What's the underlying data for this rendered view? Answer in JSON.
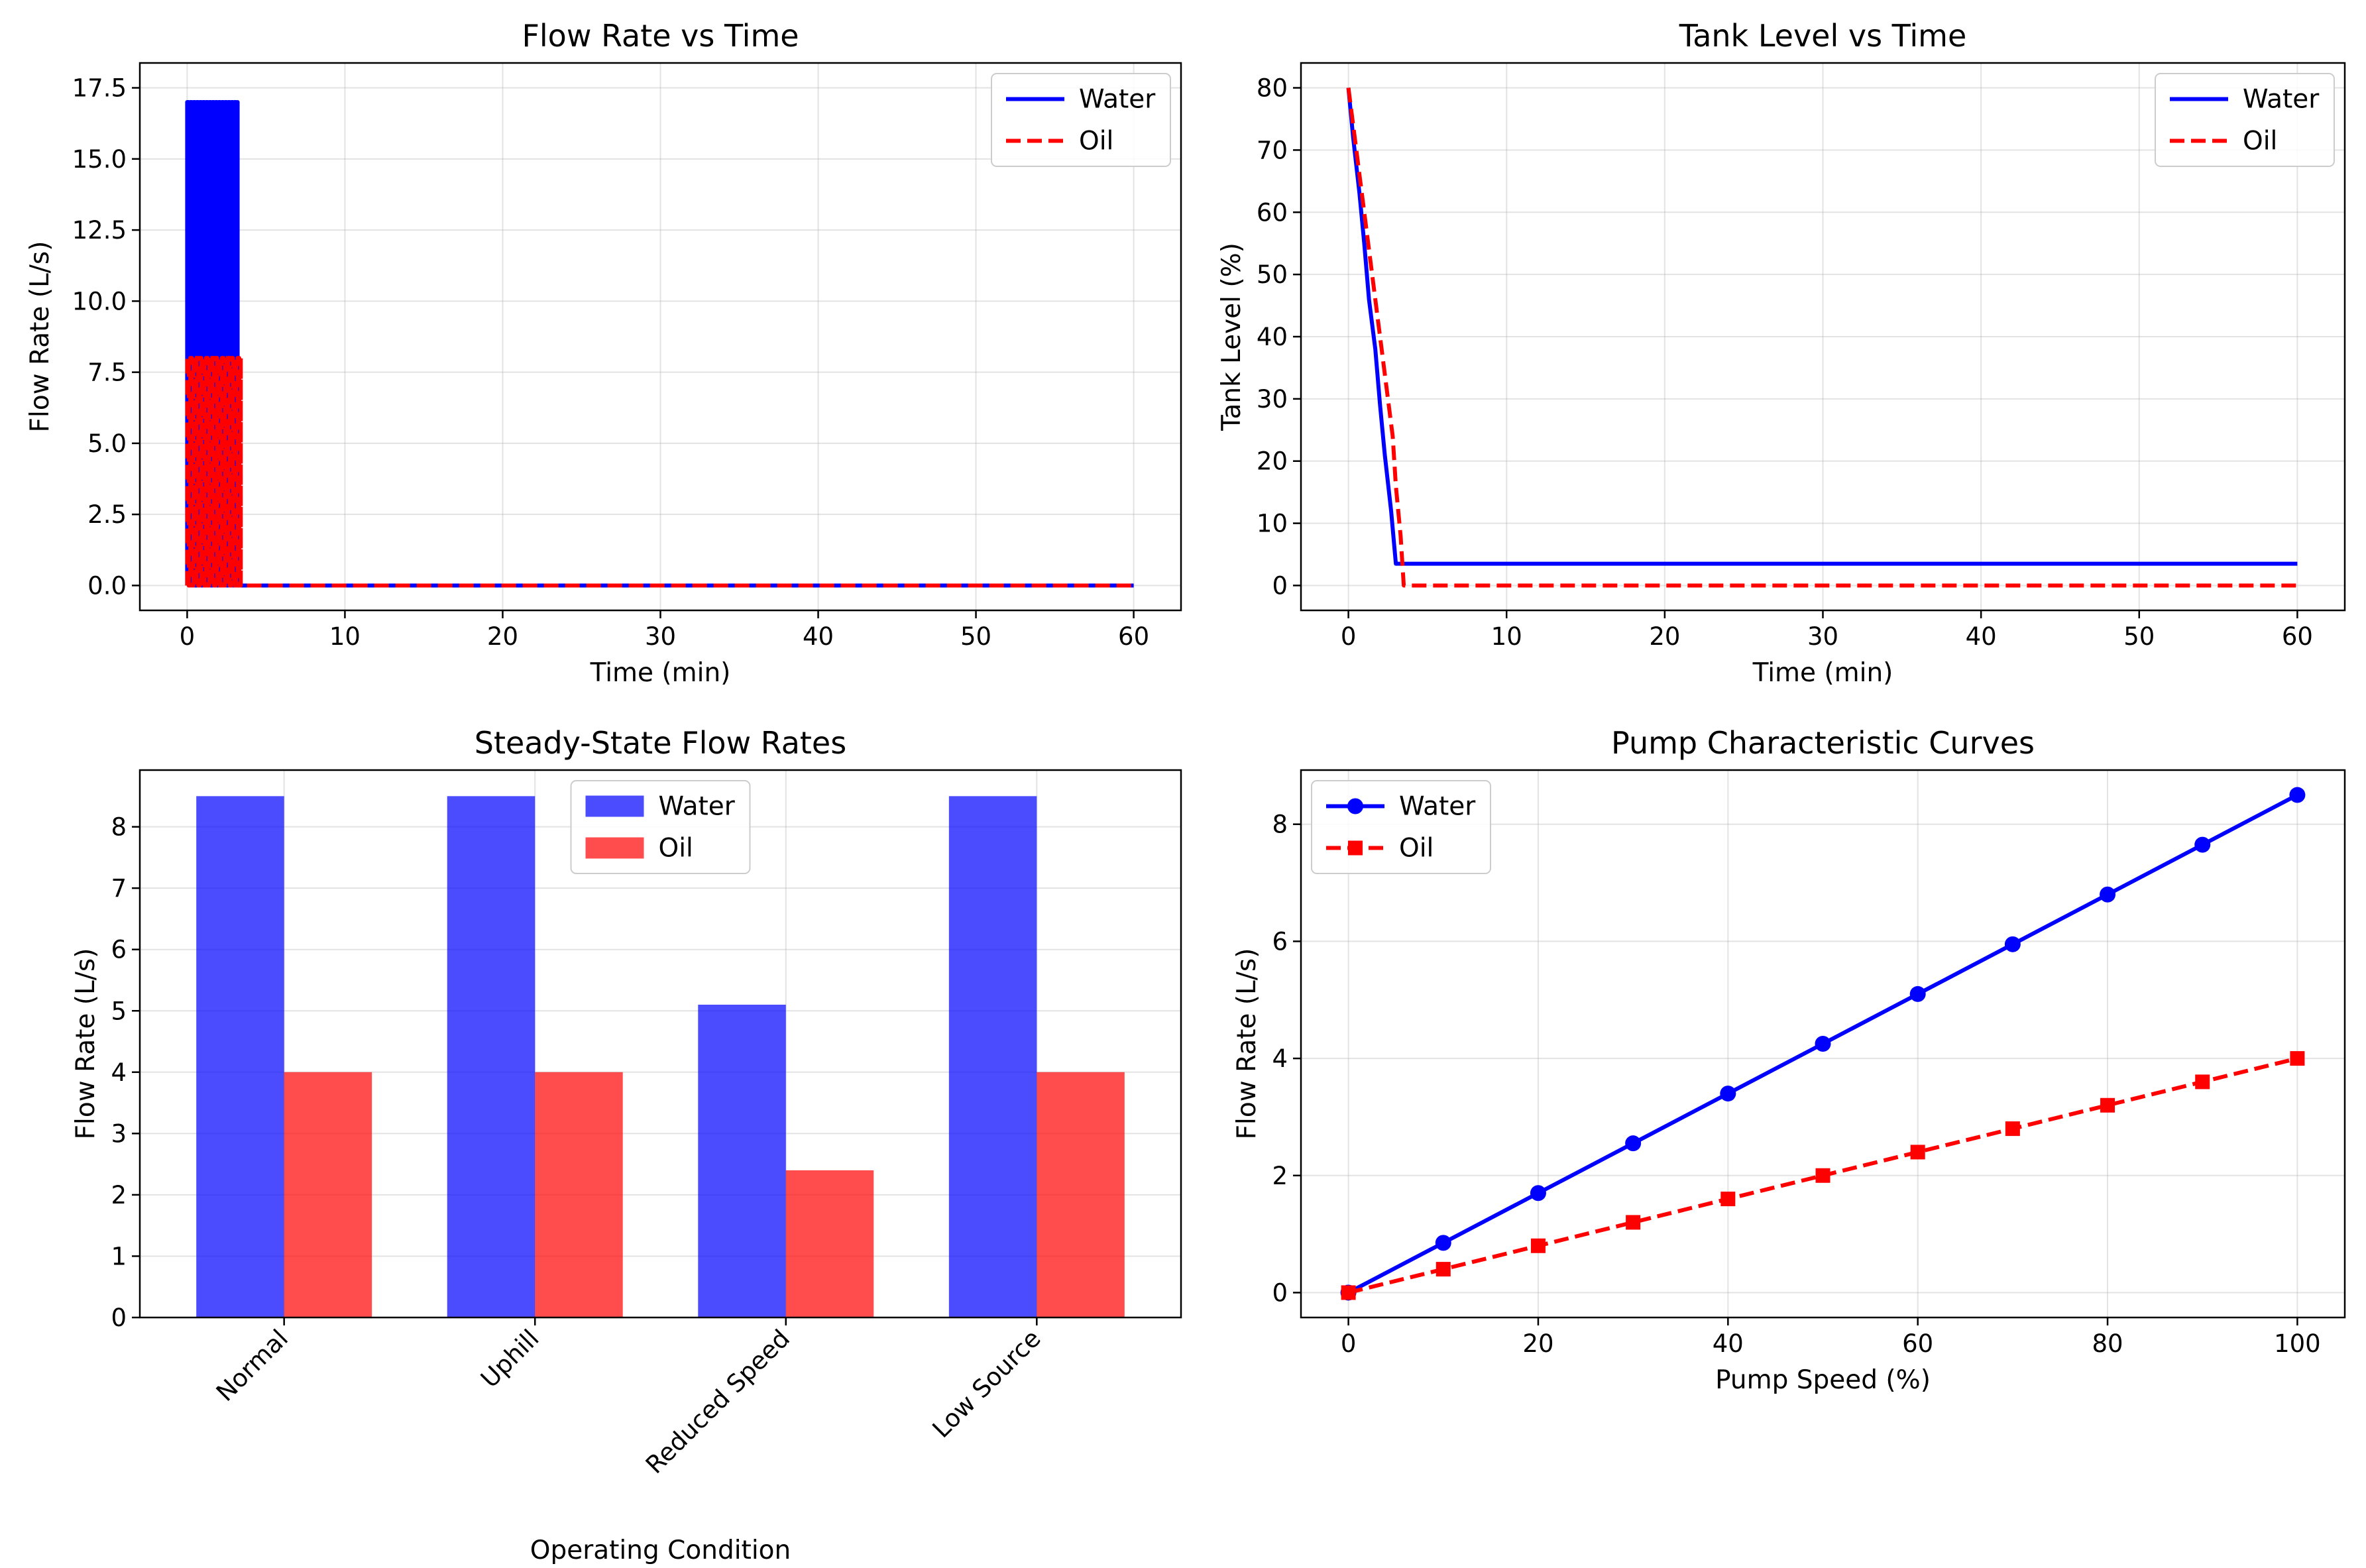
{
  "colors": {
    "water": "#0000ff",
    "oil": "#ff0000",
    "grid": "#b0b0b0",
    "axes": "#000000"
  },
  "chart_data": [
    {
      "id": "flow",
      "type": "line",
      "title": "Flow Rate vs Time",
      "xlabel": "Time (min)",
      "ylabel": "Flow Rate (L/s)",
      "xlim": [
        -3,
        63
      ],
      "ylim": [
        -0.875,
        18.375
      ],
      "xticks": [
        0,
        10,
        20,
        30,
        40,
        50,
        60
      ],
      "yticks": [
        0.0,
        2.5,
        5.0,
        7.5,
        10.0,
        12.5,
        15.0,
        17.5
      ],
      "ytick_labels": [
        "0.0",
        "2.5",
        "5.0",
        "7.5",
        "10.0",
        "12.5",
        "15.0",
        "17.5"
      ],
      "grid": true,
      "legend": "upper-right",
      "series": [
        {
          "name": "Water",
          "style": "solid",
          "color": "water",
          "oscillation": {
            "from": 0,
            "to": 3.2,
            "low": 0,
            "high": 17,
            "step": 0.1
          },
          "points": [
            [
              3.2,
              0
            ],
            [
              60,
              0
            ]
          ]
        },
        {
          "name": "Oil",
          "style": "dashed",
          "color": "oil",
          "oscillation": {
            "from": 0,
            "to": 3.4,
            "low": 0,
            "high": 8,
            "step": 0.1
          },
          "points": [
            [
              3.4,
              0
            ],
            [
              60,
              0
            ]
          ]
        }
      ]
    },
    {
      "id": "tank",
      "type": "line",
      "title": "Tank Level vs Time",
      "xlabel": "Time (min)",
      "ylabel": "Tank Level (%)",
      "xlim": [
        -3,
        63
      ],
      "ylim": [
        -4,
        84
      ],
      "xticks": [
        0,
        10,
        20,
        30,
        40,
        50,
        60
      ],
      "yticks": [
        0,
        10,
        20,
        30,
        40,
        50,
        60,
        70,
        80
      ],
      "grid": true,
      "legend": "upper-right",
      "series": [
        {
          "name": "Water",
          "style": "solid",
          "color": "water",
          "points": [
            [
              0,
              80
            ],
            [
              0.3,
              72
            ],
            [
              0.7,
              63
            ],
            [
              1.0,
              55
            ],
            [
              1.3,
              46
            ],
            [
              1.7,
              38
            ],
            [
              2.0,
              29
            ],
            [
              2.3,
              21
            ],
            [
              2.7,
              12
            ],
            [
              3.0,
              3.5
            ],
            [
              60,
              3.5
            ]
          ]
        },
        {
          "name": "Oil",
          "style": "dashed",
          "color": "oil",
          "points": [
            [
              0,
              80
            ],
            [
              0.4,
              72
            ],
            [
              0.8,
              64
            ],
            [
              1.2,
              56
            ],
            [
              1.6,
              48
            ],
            [
              2.0,
              40
            ],
            [
              2.4,
              32
            ],
            [
              2.8,
              24
            ],
            [
              3.0,
              16
            ],
            [
              3.3,
              8
            ],
            [
              3.5,
              0
            ],
            [
              60,
              0
            ]
          ]
        }
      ]
    },
    {
      "id": "bars",
      "type": "bar",
      "title": "Steady-State Flow Rates",
      "xlabel": "Operating Condition",
      "ylabel": "Flow Rate (L/s)",
      "categories": [
        "Normal",
        "Uphill",
        "Reduced Speed",
        "Low Source"
      ],
      "ylim": [
        0,
        8.925
      ],
      "yticks": [
        0,
        1,
        2,
        3,
        4,
        5,
        6,
        7,
        8
      ],
      "grid": true,
      "legend": "upper-center",
      "bar_alpha": 0.7,
      "series": [
        {
          "name": "Water",
          "color": "water",
          "values": [
            8.5,
            8.5,
            5.1,
            8.5
          ]
        },
        {
          "name": "Oil",
          "color": "oil",
          "values": [
            4.0,
            4.0,
            2.4,
            4.0
          ]
        }
      ]
    },
    {
      "id": "pump",
      "type": "line",
      "title": "Pump Characteristic Curves",
      "xlabel": "Pump Speed (%)",
      "ylabel": "Flow Rate (L/s)",
      "xlim": [
        -5,
        105
      ],
      "ylim": [
        -0.425,
        8.925
      ],
      "xticks": [
        0,
        20,
        40,
        60,
        80,
        100
      ],
      "yticks": [
        0,
        2,
        4,
        6,
        8
      ],
      "grid": true,
      "legend": "upper-left",
      "series": [
        {
          "name": "Water",
          "style": "solid",
          "marker": "circle",
          "color": "water",
          "points": [
            [
              0,
              0
            ],
            [
              10,
              0.85
            ],
            [
              20,
              1.7
            ],
            [
              30,
              2.55
            ],
            [
              40,
              3.4
            ],
            [
              50,
              4.25
            ],
            [
              60,
              5.1
            ],
            [
              70,
              5.95
            ],
            [
              80,
              6.8
            ],
            [
              90,
              7.65
            ],
            [
              100,
              8.5
            ]
          ]
        },
        {
          "name": "Oil",
          "style": "dashed",
          "marker": "square",
          "color": "oil",
          "points": [
            [
              0,
              0
            ],
            [
              10,
              0.4
            ],
            [
              20,
              0.8
            ],
            [
              30,
              1.2
            ],
            [
              40,
              1.6
            ],
            [
              50,
              2.0
            ],
            [
              60,
              2.4
            ],
            [
              70,
              2.8
            ],
            [
              80,
              3.2
            ],
            [
              90,
              3.6
            ],
            [
              100,
              4.0
            ]
          ]
        }
      ]
    }
  ]
}
